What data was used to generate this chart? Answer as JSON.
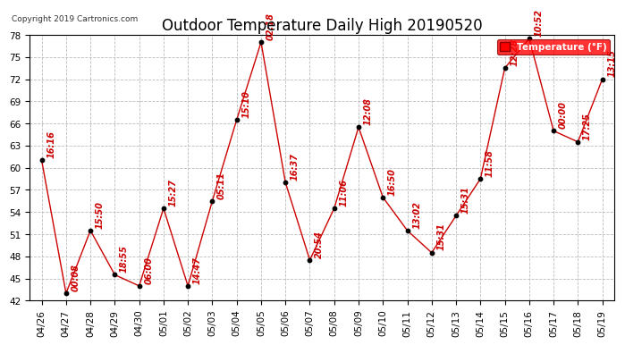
{
  "title": "Outdoor Temperature Daily High 20190520",
  "copyright": "Copyright 2019 Cartronics.com",
  "legend_label": "Temperature (°F)",
  "ylim": [
    42.0,
    78.0
  ],
  "yticks": [
    42.0,
    45.0,
    48.0,
    51.0,
    54.0,
    57.0,
    60.0,
    63.0,
    66.0,
    69.0,
    72.0,
    75.0,
    78.0
  ],
  "dates": [
    "04/26",
    "04/27",
    "04/28",
    "04/29",
    "04/30",
    "05/01",
    "05/02",
    "05/03",
    "05/04",
    "05/05",
    "05/06",
    "05/07",
    "05/08",
    "05/09",
    "05/10",
    "05/11",
    "05/12",
    "05/13",
    "05/14",
    "05/15",
    "05/16",
    "05/17",
    "05/18",
    "05/19"
  ],
  "temperatures": [
    61.0,
    43.0,
    51.5,
    45.5,
    44.0,
    54.5,
    44.0,
    55.5,
    66.5,
    77.0,
    58.0,
    47.5,
    54.5,
    65.5,
    56.0,
    51.5,
    48.5,
    53.5,
    58.5,
    73.5,
    77.5,
    65.0,
    63.5,
    72.0
  ],
  "time_labels": [
    "16:16",
    "00:08",
    "15:50",
    "18:55",
    "06:00",
    "15:27",
    "14:47",
    "05:11",
    "15:10",
    "02:18",
    "16:37",
    "20:54",
    "11:06",
    "12:08",
    "16:50",
    "13:02",
    "15:31",
    "15:31",
    "11:58",
    "12:28",
    "10:52",
    "00:00",
    "17:25",
    "13:15"
  ],
  "line_color": "#cc0000",
  "marker_color": "#000000",
  "bg_color": "#ffffff",
  "grid_color": "#bbbbbb",
  "title_fontsize": 12,
  "label_fontsize": 7,
  "tick_fontsize": 7.5,
  "copyright_fontsize": 6.5
}
